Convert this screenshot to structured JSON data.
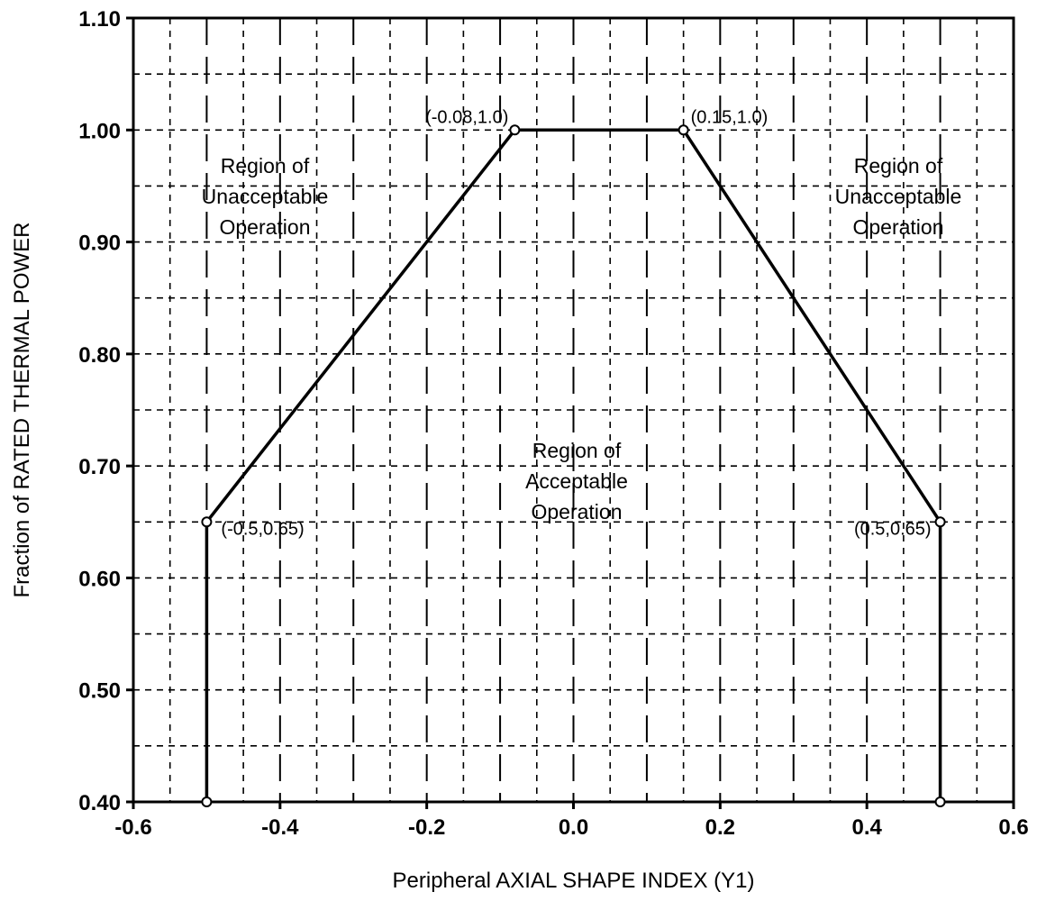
{
  "chart_data": {
    "type": "line",
    "title": "",
    "xlabel": "Peripheral AXIAL SHAPE INDEX (Y1)",
    "ylabel": "Fraction of RATED THERMAL POWER",
    "xlim": [
      -0.6,
      0.6
    ],
    "ylim": [
      0.4,
      1.1
    ],
    "x_ticks": [
      -0.6,
      -0.4,
      -0.2,
      0.0,
      0.2,
      0.4,
      0.6
    ],
    "x_tick_labels": [
      "-0.6",
      "-0.4",
      "-0.2",
      "0.0",
      "0.2",
      "0.4",
      "0.6"
    ],
    "y_ticks": [
      0.4,
      0.5,
      0.6,
      0.7,
      0.8,
      0.9,
      1.0,
      1.1
    ],
    "y_tick_labels": [
      "0.40",
      "0.50",
      "0.60",
      "0.70",
      "0.80",
      "0.90",
      "1.00",
      "1.10"
    ],
    "grid": true,
    "series": [
      {
        "x": [
          -0.5,
          -0.5,
          -0.08,
          0.15,
          0.5,
          0.5
        ],
        "y": [
          0.4,
          0.65,
          1.0,
          1.0,
          0.65,
          0.4
        ]
      }
    ],
    "point_labels": [
      {
        "x": -0.08,
        "y": 1.0,
        "text": "(-0.08,1.0)"
      },
      {
        "x": 0.15,
        "y": 1.0,
        "text": "(0.15,1.0)"
      },
      {
        "x": -0.5,
        "y": 0.65,
        "text": "(-0.5,0.65)"
      },
      {
        "x": 0.5,
        "y": 0.65,
        "text": "(0.5,0.65)"
      }
    ],
    "annotations": [
      {
        "id": "left-unacceptable",
        "lines": [
          "Region of",
          "Unacceptable",
          "Operation"
        ]
      },
      {
        "id": "right-unacceptable",
        "lines": [
          "Region of",
          "Unacceptable",
          "Operation"
        ]
      },
      {
        "id": "acceptable",
        "lines": [
          "Region of",
          "Acceptable",
          "Operation"
        ]
      }
    ]
  }
}
